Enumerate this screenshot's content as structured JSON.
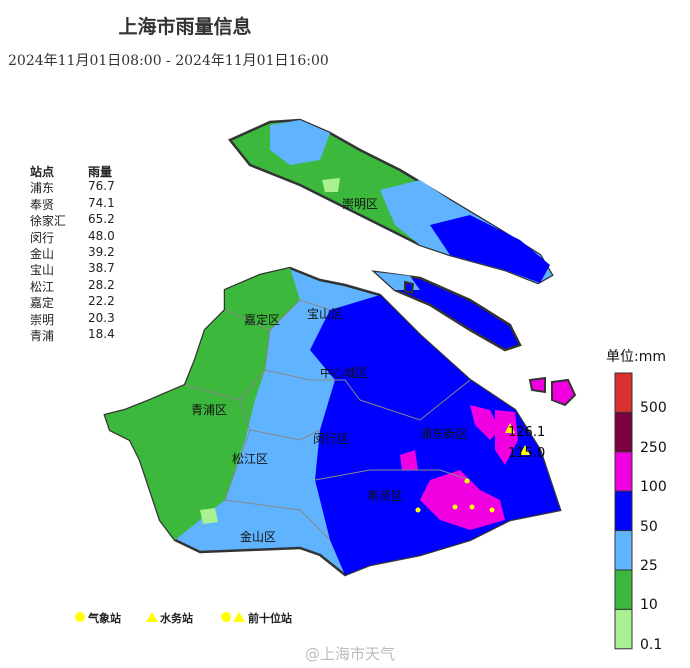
{
  "title": "上海市雨量信息",
  "subtitle": "2024年11月01日08:00 - 2024年11月01日16:00",
  "stations": {
    "header": [
      "站点",
      "雨量"
    ],
    "rows": [
      [
        "浦东",
        "76.7"
      ],
      [
        "奉贤",
        "74.1"
      ],
      [
        "徐家汇",
        "65.2"
      ],
      [
        "闵行",
        "48.0"
      ],
      [
        "金山",
        "39.2"
      ],
      [
        "宝山",
        "38.7"
      ],
      [
        "松江",
        "28.2"
      ],
      [
        "嘉定",
        "22.2"
      ],
      [
        "崇明",
        "20.3"
      ],
      [
        "青浦",
        "18.4"
      ]
    ]
  },
  "districts": [
    "崇明区",
    "嘉定区",
    "宝山区",
    "中心城区",
    "青浦区",
    "闵行区",
    "浦东新区",
    "松江区",
    "奉贤区",
    "金山区"
  ],
  "map_labels": [
    "126.1",
    "115.0"
  ],
  "legend": {
    "unit": "单位:mm",
    "breaks": [
      "500",
      "250",
      "100",
      "50",
      "25",
      "10",
      "0.1"
    ],
    "colors": [
      "#d93030",
      "#7a0040",
      "#f000e0",
      "#0000ff",
      "#60b4ff",
      "#3cb83c",
      "#a8f090"
    ]
  },
  "symbols": {
    "weather_station": "气象站",
    "water_station": "水务站",
    "top_ten": "前十位站"
  },
  "watermark": "@上海市天气"
}
